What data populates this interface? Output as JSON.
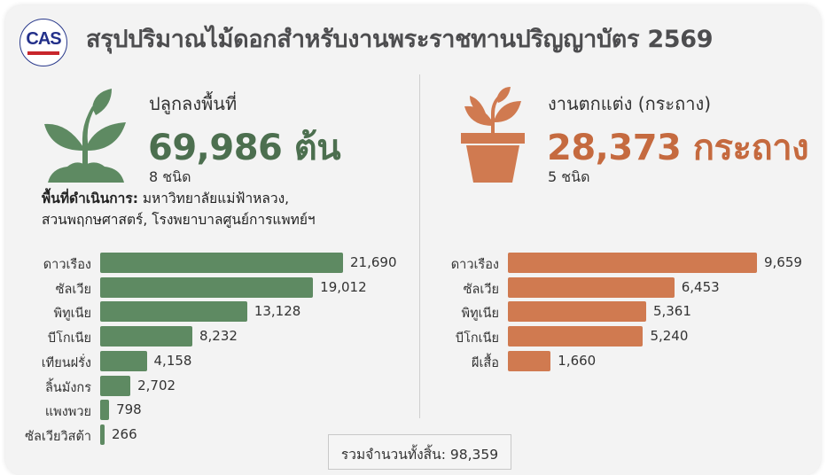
{
  "header": {
    "title": "สรุปปริมาณไม้ดอกสำหรับงานพระราชทานปริญญาบัตร 2569",
    "logo_text": "CAS"
  },
  "colors": {
    "green": "#5e8a62",
    "green_text": "#4c6f4f",
    "orange": "#d07a50",
    "orange_text": "#c56a3f"
  },
  "left": {
    "icon": "sprout-icon",
    "subtitle": "ปลูกลงพื้นที่",
    "total": "69,986 ต้น",
    "count": "8 ชนิด",
    "area_label": "พื้นที่ดำเนินการ:",
    "area_line1": " มหาวิทยาลัยแม่ฟ้าหลวง,",
    "area_line2": "สวนพฤกษศาสตร์, โรงพยาบาลศูนย์การแพทย์ฯ"
  },
  "right": {
    "icon": "potted-plant-icon",
    "subtitle": "งานตกแต่ง (กระถาง)",
    "total": "28,373 กระถาง",
    "count": "5 ชนิด"
  },
  "footer": {
    "total": "รวมจำนวนทั้งสิ้น: 98,359"
  },
  "chart_data": [
    {
      "type": "bar",
      "orientation": "horizontal",
      "color": "#5e8a62",
      "categories": [
        "ดาวเรือง",
        "ซัลเวีย",
        "พิทูเนีย",
        "บีโกเนีย",
        "เทียนฝรั่ง",
        "ลิ้นมังกร",
        "แพงพวย",
        "ซัลเวียวิสต้า"
      ],
      "values": [
        21690,
        19012,
        13128,
        8232,
        4158,
        2702,
        798,
        266
      ],
      "labels": [
        "21,690",
        "19,012",
        "13,128",
        "8,232",
        "4,158",
        "2,702",
        "798",
        "266"
      ]
    },
    {
      "type": "bar",
      "orientation": "horizontal",
      "color": "#d07a50",
      "categories": [
        "ดาวเรือง",
        "ซัลเวีย",
        "พิทูเนีย",
        "บีโกเนีย",
        "ผีเสื้อ"
      ],
      "values": [
        9659,
        6453,
        5361,
        5240,
        1660
      ],
      "labels": [
        "9,659",
        "6,453",
        "5,361",
        "5,240",
        "1,660"
      ]
    }
  ]
}
